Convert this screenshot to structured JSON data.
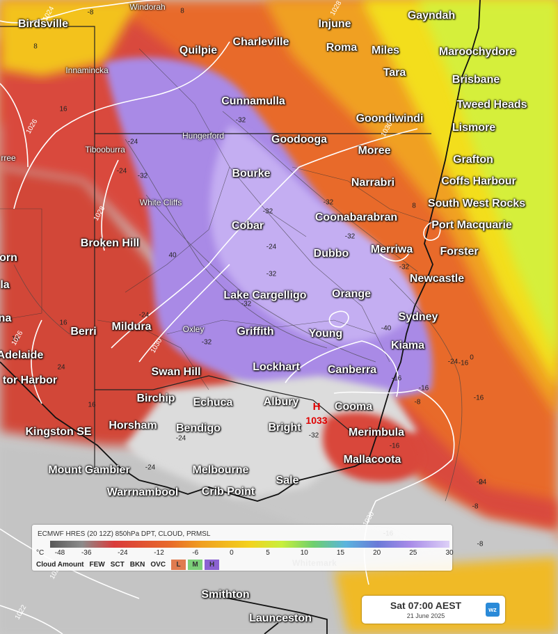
{
  "map": {
    "places_major": [
      {
        "name": "Birdsville",
        "key": "birdsville"
      },
      {
        "name": "Quilpie",
        "key": "quilpie"
      },
      {
        "name": "Charleville",
        "key": "charleville"
      },
      {
        "name": "Injune",
        "key": "injune"
      },
      {
        "name": "Roma",
        "key": "roma"
      },
      {
        "name": "Miles",
        "key": "miles"
      },
      {
        "name": "Gayndah",
        "key": "gayndah"
      },
      {
        "name": "Maroochydore",
        "key": "maroochydore"
      },
      {
        "name": "Brisbane",
        "key": "brisbane"
      },
      {
        "name": "Tara",
        "key": "tara"
      },
      {
        "name": "Tweed Heads",
        "key": "tweed-heads"
      },
      {
        "name": "Lismore",
        "key": "lismore"
      },
      {
        "name": "Goondiwindi",
        "key": "goondiwindi"
      },
      {
        "name": "Cunnamulla",
        "key": "cunnamulla"
      },
      {
        "name": "Goodooga",
        "key": "goodooga"
      },
      {
        "name": "Moree",
        "key": "moree"
      },
      {
        "name": "Grafton",
        "key": "grafton"
      },
      {
        "name": "Coffs Harbour",
        "key": "coffs-harbour"
      },
      {
        "name": "Bourke",
        "key": "bourke"
      },
      {
        "name": "Narrabri",
        "key": "narrabri"
      },
      {
        "name": "South West Rocks",
        "key": "south-west-rocks"
      },
      {
        "name": "Cobar",
        "key": "cobar"
      },
      {
        "name": "Coonabarabran",
        "key": "coonabarabran"
      },
      {
        "name": "Port Macquarie",
        "key": "port-macquarie"
      },
      {
        "name": "Broken Hill",
        "key": "broken-hill"
      },
      {
        "name": "Merriwa",
        "key": "merriwa"
      },
      {
        "name": "Dubbo",
        "key": "dubbo"
      },
      {
        "name": "Forster",
        "key": "forster"
      },
      {
        "name": "orn",
        "key": "orn"
      },
      {
        "name": "Newcastle",
        "key": "newcastle"
      },
      {
        "name": "la",
        "key": "la"
      },
      {
        "name": "Lake Cargelligo",
        "key": "lake-cargelligo"
      },
      {
        "name": "Orange",
        "key": "orange"
      },
      {
        "name": "Sydney",
        "key": "sydney"
      },
      {
        "name": "na",
        "key": "na"
      },
      {
        "name": "Berri",
        "key": "berri"
      },
      {
        "name": "Mildura",
        "key": "mildura"
      },
      {
        "name": "Griffith",
        "key": "griffith"
      },
      {
        "name": "Young",
        "key": "young"
      },
      {
        "name": "Kiama",
        "key": "kiama"
      },
      {
        "name": "Adelaide",
        "key": "adelaide"
      },
      {
        "name": "Swan Hill",
        "key": "swan-hill"
      },
      {
        "name": "Lockhart",
        "key": "lockhart"
      },
      {
        "name": "Canberra",
        "key": "canberra"
      },
      {
        "name": "tor Harbor",
        "key": "victor-harbor"
      },
      {
        "name": "Birchip",
        "key": "birchip"
      },
      {
        "name": "Echuca",
        "key": "echuca"
      },
      {
        "name": "Albury",
        "key": "albury"
      },
      {
        "name": "Cooma",
        "key": "cooma"
      },
      {
        "name": "Horsham",
        "key": "horsham"
      },
      {
        "name": "Bendigo",
        "key": "bendigo"
      },
      {
        "name": "Bright",
        "key": "bright"
      },
      {
        "name": "Kingston SE",
        "key": "kingston-se"
      },
      {
        "name": "Merimbula",
        "key": "merimbula"
      },
      {
        "name": "Mallacoota",
        "key": "mallacoota"
      },
      {
        "name": "Mount Gambier",
        "key": "mount-gambier"
      },
      {
        "name": "Melbourne",
        "key": "melbourne"
      },
      {
        "name": "Sale",
        "key": "sale"
      },
      {
        "name": "Warrnambool",
        "key": "warrnambool"
      },
      {
        "name": "Crib Point",
        "key": "crib-point"
      },
      {
        "name": "Smithton",
        "key": "smithton"
      },
      {
        "name": "Launceston",
        "key": "launceston"
      }
    ],
    "places_minor": [
      {
        "name": "Windorah",
        "key": "windorah"
      },
      {
        "name": "Innamincka",
        "key": "innamincka"
      },
      {
        "name": "Hungerford",
        "key": "hungerford"
      },
      {
        "name": "Tibooburra",
        "key": "tibooburra"
      },
      {
        "name": "rree",
        "key": "marree"
      },
      {
        "name": "White Cliffs",
        "key": "white-cliffs"
      },
      {
        "name": "Oxley",
        "key": "oxley"
      }
    ],
    "contour_labels": [
      "8",
      "8",
      "-8",
      "16",
      "-32",
      "-24",
      "-32",
      "-24",
      "40",
      "-32",
      "-32",
      "-32",
      "-32",
      "-24",
      "-32",
      "-32",
      "-32",
      "-40",
      "-24",
      "-24",
      "-16",
      "-8",
      "-16",
      "16",
      "16",
      "24",
      "-24",
      "-16",
      "-8",
      "-32",
      "16",
      "-16",
      "-16",
      "-24",
      "0",
      "8",
      "0",
      "-8",
      "-24",
      "-16"
    ],
    "isobar_labels": [
      "1024",
      "1028",
      "1026",
      "1028",
      "1026",
      "1030",
      "1030",
      "1030",
      "1024",
      "1022"
    ],
    "high_pressure": {
      "letter": "H",
      "value": "1033"
    }
  },
  "legend": {
    "title": "ECMWF HRES (20 12Z) 850hPa DPT, CLOUD, PRMSL",
    "unit": "°C",
    "ticks": [
      "-48",
      "-36",
      "-24",
      "-12",
      "-6",
      "0",
      "5",
      "10",
      "15",
      "20",
      "25",
      "30"
    ],
    "cloud_label": "Cloud Amount",
    "cloud_items": [
      "FEW",
      "SCT",
      "BKN",
      "OVC"
    ],
    "cloud_levels": [
      {
        "label": "L",
        "color": "#e07b4f"
      },
      {
        "label": "M",
        "color": "#7ccf79"
      },
      {
        "label": "H",
        "color": "#8b62d2"
      }
    ]
  },
  "watermark": "Whitemark",
  "time_box": {
    "main": "Sat 07:00 AEST",
    "date": "21 June 2025",
    "logo": "wz"
  },
  "colors": {
    "very_dry": "#a07ee0",
    "dry_purple": "#c2a6f2",
    "red": "#d94a3e",
    "orange": "#f09028",
    "yellow": "#f3de1c",
    "lime": "#d5ef3a",
    "cloud_grey": "#d6d6d6"
  }
}
